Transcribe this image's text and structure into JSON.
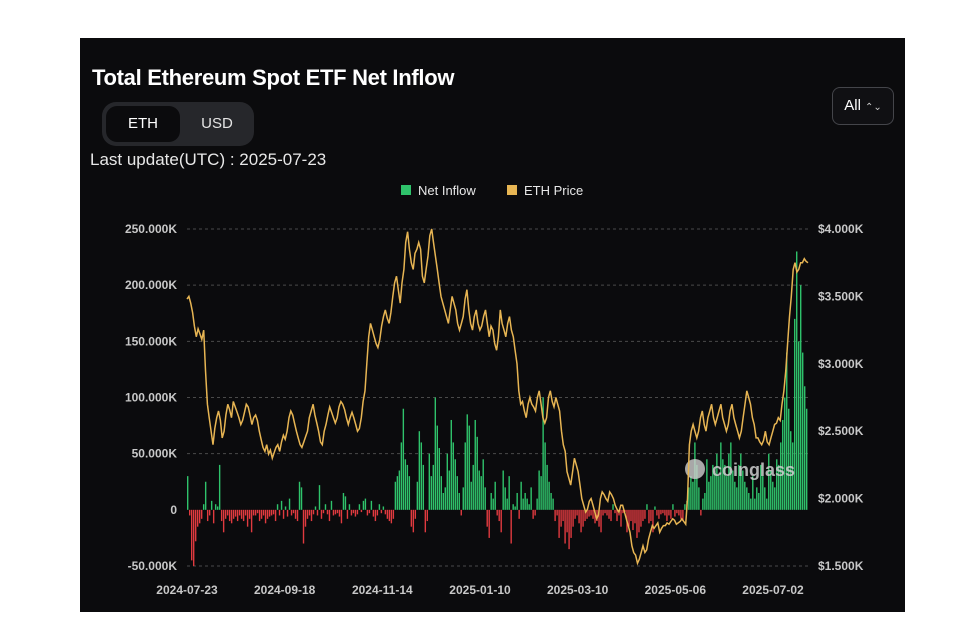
{
  "header": {
    "title": "Total Ethereum Spot ETF Net Inflow",
    "unit_tabs": [
      {
        "label": "ETH",
        "active": true
      },
      {
        "label": "USD",
        "active": false
      }
    ],
    "range_select": "All",
    "last_update": "Last update(UTC) : 2025-07-23"
  },
  "watermark": "coinglass",
  "colors": {
    "inflow_positive": "#2fc36b",
    "inflow_negative": "#e03a3f",
    "price_line": "#e7b553",
    "grid": "#4a4a4a"
  },
  "chart_data": {
    "type": "bar",
    "legend": [
      {
        "name": "Net Inflow",
        "color": "#2fc36b"
      },
      {
        "name": "ETH Price",
        "color": "#e7b553"
      }
    ],
    "x_tick_labels": [
      "2024-07-23",
      "2024-09-18",
      "2024-11-14",
      "2025-01-10",
      "2025-03-10",
      "2025-05-06",
      "2025-07-02"
    ],
    "y_left": {
      "ticks": [
        "250.000K",
        "200.000K",
        "150.000K",
        "100.000K",
        "50.000K",
        "0",
        "-50.000K"
      ],
      "min": -50000,
      "max": 250000
    },
    "y_right": {
      "ticks": [
        "$4.000K",
        "$3.500K",
        "$3.000K",
        "$2.500K",
        "$2.000K",
        "$1.500K"
      ],
      "min": 1500,
      "max": 4000
    },
    "start_date": "2024-07-23",
    "end_date": "2025-07-23",
    "series": [
      {
        "name": "Net Inflow",
        "axis": "left",
        "values": [
          30000,
          -5000,
          -45000,
          -50000,
          -28000,
          -15000,
          -12000,
          -8000,
          5000,
          25000,
          -10000,
          -5000,
          8000,
          -12000,
          5000,
          3000,
          40000,
          -10000,
          -20000,
          -8000,
          -5000,
          -10000,
          -12000,
          -8000,
          -6000,
          -10000,
          -5000,
          -8000,
          -10000,
          -5000,
          -15000,
          -8000,
          -20000,
          -5000,
          -5000,
          -3000,
          -10000,
          -8000,
          -5000,
          -12000,
          -8000,
          -6000,
          -5000,
          -4000,
          -10000,
          5000,
          -5000,
          8000,
          -8000,
          3000,
          -6000,
          10000,
          -5000,
          -3000,
          -8000,
          -10000,
          25000,
          20000,
          -30000,
          -15000,
          -8000,
          -5000,
          -10000,
          -4000,
          3000,
          -5000,
          22000,
          -8000,
          -3000,
          5000,
          -4000,
          -10000,
          8000,
          -5000,
          -4000,
          -3000,
          -6000,
          -12000,
          15000,
          12000,
          -8000,
          5000,
          -5000,
          -3000,
          -6000,
          -4000,
          5000,
          -2000,
          8000,
          10000,
          -5000,
          -3000,
          8000,
          -6000,
          -10000,
          -5000,
          5000,
          -3000,
          3000,
          -4000,
          -8000,
          -10000,
          -12000,
          -8000,
          25000,
          30000,
          35000,
          60000,
          90000,
          45000,
          40000,
          30000,
          -15000,
          -20000,
          -8000,
          25000,
          70000,
          60000,
          40000,
          -20000,
          -10000,
          50000,
          30000,
          40000,
          100000,
          75000,
          55000,
          30000,
          15000,
          20000,
          50000,
          35000,
          80000,
          60000,
          45000,
          30000,
          15000,
          -5000,
          20000,
          60000,
          85000,
          75000,
          25000,
          40000,
          80000,
          65000,
          35000,
          30000,
          45000,
          20000,
          -15000,
          -25000,
          15000,
          10000,
          25000,
          -5000,
          -10000,
          -20000,
          35000,
          20000,
          10000,
          30000,
          -30000,
          5000,
          3000,
          15000,
          -8000,
          25000,
          10000,
          15000,
          10000,
          5000,
          20000,
          -8000,
          -5000,
          10000,
          35000,
          30000,
          100000,
          60000,
          40000,
          25000,
          15000,
          10000,
          -10000,
          -5000,
          -25000,
          -15000,
          -10000,
          -30000,
          -20000,
          -35000,
          -25000,
          -15000,
          -8000,
          -5000,
          -12000,
          -20000,
          -15000,
          -10000,
          -8000,
          -6000,
          -5000,
          -8000,
          -12000,
          -10000,
          -15000,
          -20000,
          -5000,
          -3000,
          -5000,
          -8000,
          -10000,
          5000,
          -3000,
          -10000,
          -5000,
          -15000,
          -3000,
          -2000,
          -20000,
          -15000,
          -10000,
          -18000,
          -12000,
          -25000,
          -20000,
          -15000,
          -10000,
          -8000,
          5000,
          -12000,
          -10000,
          -20000,
          3000,
          -5000,
          -8000,
          -4000,
          -3000,
          -5000,
          -10000,
          -5000,
          -8000,
          5000,
          -6000,
          -3000,
          -5000,
          -8000,
          -10000,
          5000,
          8000,
          20000,
          30000,
          25000,
          60000,
          40000,
          20000,
          -5000,
          10000,
          15000,
          45000,
          25000,
          30000,
          40000,
          35000,
          50000,
          30000,
          60000,
          45000,
          40000,
          30000,
          50000,
          60000,
          35000,
          25000,
          20000,
          40000,
          50000,
          35000,
          25000,
          20000,
          15000,
          10000,
          30000,
          10000,
          20000,
          15000,
          40000,
          30000,
          20000,
          10000,
          50000,
          35000,
          25000,
          20000,
          45000,
          40000,
          60000,
          80000,
          100000,
          140000,
          90000,
          70000,
          60000,
          170000,
          230000,
          150000,
          200000,
          140000,
          110000,
          90000
        ]
      },
      {
        "name": "ETH Price",
        "axis": "right",
        "values": [
          3480,
          3500,
          3450,
          3380,
          3280,
          3200,
          3260,
          3220,
          3180,
          3250,
          2950,
          2700,
          2600,
          2500,
          2400,
          2520,
          2600,
          2650,
          2580,
          2450,
          2500,
          2620,
          2700,
          2660,
          2600,
          2720,
          2680,
          2640,
          2600,
          2550,
          2580,
          2640,
          2700,
          2680,
          2620,
          2550,
          2600,
          2620,
          2580,
          2500,
          2440,
          2380,
          2350,
          2400,
          2330,
          2360,
          2300,
          2340,
          2380,
          2400,
          2350,
          2420,
          2470,
          2440,
          2500,
          2600,
          2650,
          2620,
          2560,
          2500,
          2450,
          2400,
          2380,
          2420,
          2460,
          2500,
          2600,
          2650,
          2700,
          2620,
          2560,
          2500,
          2420,
          2400,
          2500,
          2550,
          2620,
          2680,
          2640,
          2600,
          2560,
          2600,
          2680,
          2720,
          2700,
          2660,
          2600,
          2550,
          2600,
          2640,
          2600,
          2550,
          2500,
          2520,
          2600,
          2720,
          2800,
          3000,
          3200,
          3300,
          3250,
          3200,
          3150,
          3120,
          3180,
          3280,
          3350,
          3400,
          3340,
          3300,
          3380,
          3500,
          3600,
          3650,
          3550,
          3450,
          3600,
          3700,
          3900,
          3980,
          3850,
          3750,
          3700,
          3820,
          3850,
          3900,
          3850,
          3650,
          3600,
          3700,
          3800,
          3950,
          4000,
          3900,
          3800,
          3700,
          3600,
          3500,
          3450,
          3400,
          3350,
          3300,
          3400,
          3500,
          3450,
          3400,
          3300,
          3250,
          3300,
          3350,
          3480,
          3550,
          3400,
          3300,
          3250,
          3350,
          3400,
          3300,
          3250,
          3280,
          3350,
          3400,
          3300,
          3200,
          3280,
          3250,
          3150,
          3100,
          3200,
          3400,
          3300,
          3250,
          3200,
          3300,
          3350,
          3250,
          3200,
          3100,
          3000,
          2800,
          2700,
          2720,
          2650,
          2600,
          2700,
          2750,
          2700,
          2680,
          2650,
          2750,
          2800,
          2700,
          2600,
          2560,
          2600,
          2750,
          2800,
          2720,
          2680,
          2750,
          2700,
          2650,
          2500,
          2400,
          2350,
          2200,
          2150,
          2100,
          2200,
          2300,
          2250,
          2200,
          2100,
          2000,
          1950,
          1900,
          1920,
          1980,
          2000,
          1950,
          1900,
          1850,
          1880,
          2000,
          2050,
          2030,
          2000,
          1980,
          2050,
          2030,
          2000,
          1950,
          1920,
          1900,
          1950,
          1950,
          1900,
          1850,
          1800,
          1750,
          1650,
          1600,
          1580,
          1520,
          1550,
          1600,
          1650,
          1600,
          1620,
          1700,
          1750,
          1800,
          1780,
          1800,
          1820,
          1750,
          1780,
          1800,
          1800,
          1820,
          1810,
          1830,
          1850,
          1840,
          1810,
          1820,
          1830,
          1850,
          1830,
          1810,
          2000,
          2400,
          2500,
          2550,
          2500,
          2450,
          2500,
          2600,
          2650,
          2550,
          2500,
          2600,
          2650,
          2700,
          2600,
          2550,
          2600,
          2650,
          2700,
          2600,
          2550,
          2500,
          2550,
          2650,
          2700,
          2600,
          2550,
          2500,
          2450,
          2500,
          2600,
          2700,
          2800,
          2750,
          2700,
          2600,
          2550,
          2450,
          2450,
          2420,
          2400,
          2430,
          2500,
          2420,
          2400,
          2450,
          2500,
          2550,
          2560,
          2600,
          2580,
          2700,
          2800,
          2950,
          3150,
          3350,
          3500,
          3700,
          3750,
          3680,
          3700,
          3750,
          3750,
          3780,
          3760,
          3750
        ]
      }
    ]
  }
}
